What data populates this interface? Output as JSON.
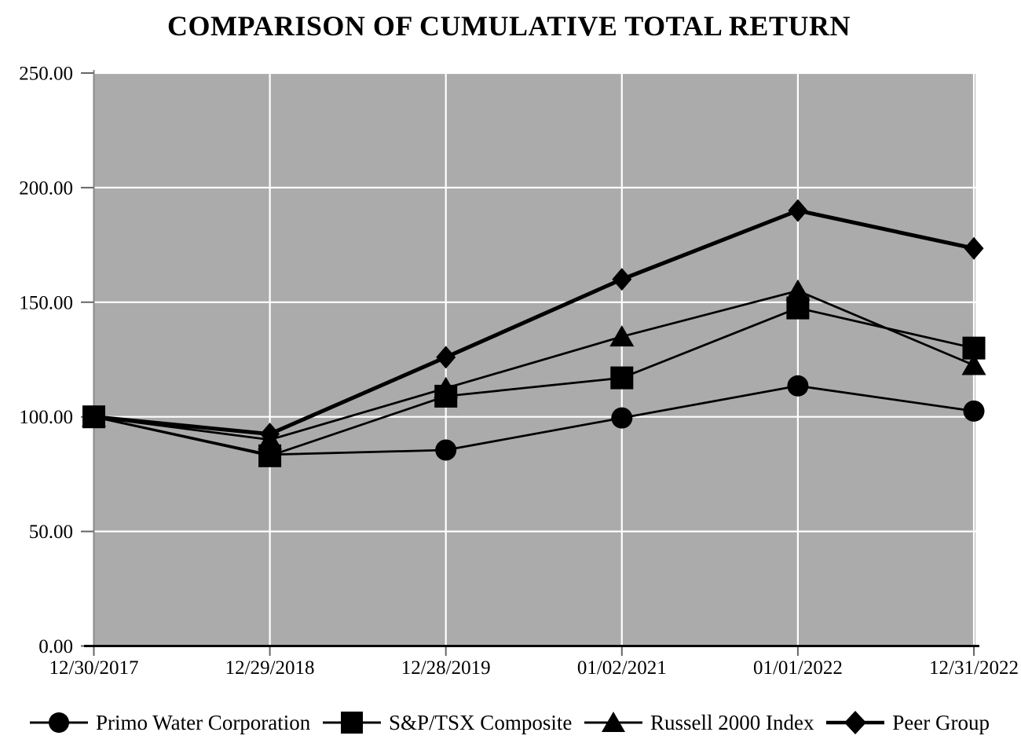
{
  "chart_data": {
    "type": "line",
    "title": "COMPARISON OF CUMULATIVE TOTAL RETURN",
    "x_categories": [
      "12/30/2017",
      "12/29/2018",
      "12/28/2019",
      "01/02/2021",
      "01/01/2022",
      "12/31/2022"
    ],
    "series": [
      {
        "name": "Primo Water Corporation",
        "marker": "circle",
        "values": [
          100.0,
          83.5,
          85.5,
          99.5,
          113.5,
          102.5
        ],
        "emphasis": false
      },
      {
        "name": "S&P/TSX Composite",
        "marker": "square",
        "values": [
          100.0,
          83.0,
          109.0,
          117.0,
          147.5,
          130.0
        ],
        "emphasis": false
      },
      {
        "name": "Russell 2000 Index",
        "marker": "triangle",
        "values": [
          100.0,
          90.0,
          112.5,
          135.0,
          155.0,
          122.5
        ],
        "emphasis": false
      },
      {
        "name": "Peer Group",
        "marker": "diamond",
        "values": [
          100.0,
          92.5,
          126.0,
          160.0,
          190.0,
          173.5
        ],
        "emphasis": true
      }
    ],
    "y_tick_labels": [
      "0.00",
      "50.00",
      "100.00",
      "150.00",
      "200.00",
      "250.00"
    ],
    "y_tick_values": [
      0,
      50,
      100,
      150,
      200,
      250
    ],
    "ylim": [
      0,
      250
    ],
    "grid": true,
    "legend_position": "bottom",
    "colors": {
      "series": "#000000",
      "plot_background": "#ababab",
      "gridline": "#ffffff",
      "axis_line": "#000000",
      "tick": "#666666",
      "text": "#000000",
      "page_background": "#ffffff"
    }
  }
}
